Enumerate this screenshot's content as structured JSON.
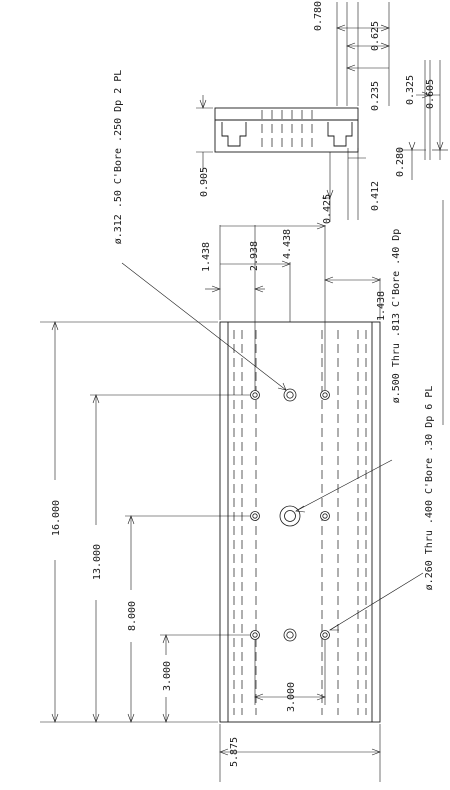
{
  "drawing": {
    "overall_dimensions": {
      "length": "16.000",
      "width": "5.875"
    },
    "hole_position_dimensions": {
      "from_end_13": "13.000",
      "from_end_8": "8.000",
      "from_end_3": "3.000",
      "row_spacing": "3.000"
    },
    "cross_dimensions": {
      "d_1438_left": "1.438",
      "d_2938": "2.938",
      "d_4438": "4.438",
      "d_1438_right": "1.438"
    },
    "profile_dimensions": {
      "d_0905": "0.905",
      "d_0425": "0.425",
      "d_0412": "0.412",
      "d_0280": "0.280",
      "d_0780": "0.780",
      "d_0625": "0.625",
      "d_0235": "0.235",
      "d_0325": "0.325",
      "d_0605": "0.605"
    },
    "callouts": {
      "cbore_312": "ø.312 .50 C'Bore .250 Dp 2 PL",
      "thru_500": "ø.500 Thru .813 C'Bore .40 Dp",
      "thru_260": "ø.260 Thru .400 C'Bore .30 Dp  6 PL"
    }
  }
}
